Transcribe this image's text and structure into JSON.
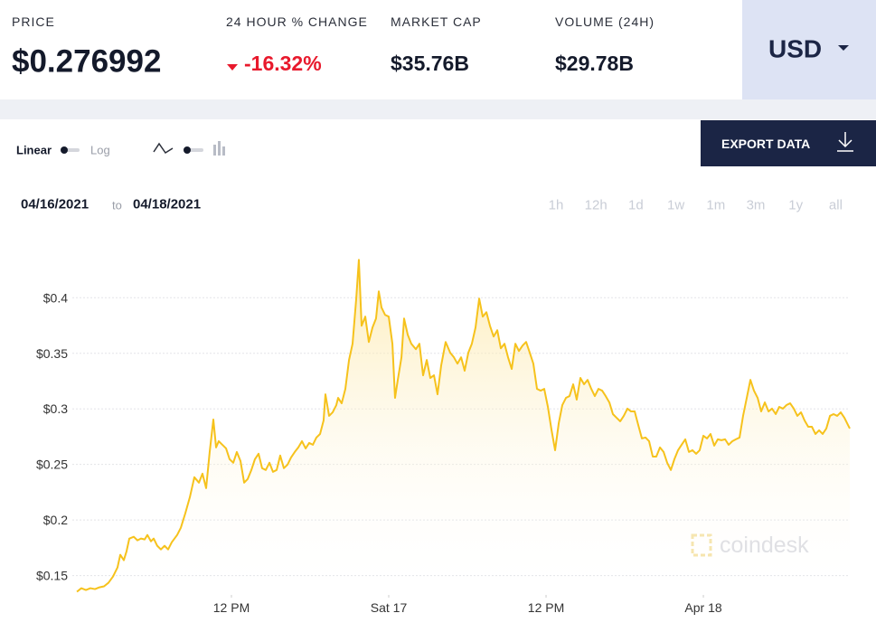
{
  "header": {
    "stats": [
      {
        "label": "PRICE",
        "value": "$0.276992"
      },
      {
        "label": "24 HOUR % CHANGE",
        "value": "-16.32%"
      },
      {
        "label": "MARKET CAP",
        "value": "$35.76B"
      },
      {
        "label": "VOLUME (24H)",
        "value": "$29.78B"
      }
    ],
    "currency": "USD"
  },
  "controls": {
    "scale_options": [
      "Linear",
      "Log"
    ],
    "export": "EXPORT DATA",
    "range_start": "04/16/2021",
    "range_separator": "to",
    "range_end": "04/18/2021",
    "ranges": [
      "1h",
      "12h",
      "1d",
      "1w",
      "1m",
      "3m",
      "1y",
      "all"
    ]
  },
  "chart_data": {
    "type": "area",
    "watermark": "coindesk",
    "color": "#f6c21c",
    "grid": true,
    "x": [
      0.21,
      0.55,
      0.9,
      1.24,
      1.59,
      1.93,
      2.28,
      2.62,
      2.97,
      3.31,
      3.52,
      3.79,
      4.0,
      4.21,
      4.55,
      4.83,
      5.1,
      5.38,
      5.59,
      5.86,
      6.07,
      6.34,
      6.62,
      6.9,
      7.17,
      7.45,
      7.86,
      8.14,
      8.48,
      8.83,
      9.17,
      9.52,
      9.79,
      10.07,
      10.34,
      10.62,
      10.83,
      11.03,
      11.31,
      11.59,
      11.86,
      12.14,
      12.41,
      12.69,
      12.97,
      13.24,
      13.52,
      13.79,
      14.07,
      14.34,
      14.62,
      14.9,
      15.17,
      15.45,
      15.72,
      16.0,
      16.28,
      16.55,
      16.83,
      17.1,
      17.38,
      17.66,
      17.93,
      18.21,
      18.48,
      18.76,
      19.03,
      19.17,
      19.45,
      19.72,
      20.0,
      20.14,
      20.41,
      20.69,
      20.97,
      21.24,
      21.52,
      21.72,
      21.93,
      22.21,
      22.48,
      22.76,
      23.03,
      23.24,
      23.45,
      23.72,
      24.0,
      24.28,
      24.48,
      24.69,
      24.97,
      25.17,
      25.45,
      25.72,
      26.07,
      26.34,
      26.62,
      26.9,
      27.17,
      27.45,
      27.72,
      28.0,
      28.34,
      28.69,
      28.97,
      29.24,
      29.52,
      29.79,
      30.07,
      30.34,
      30.62,
      30.9,
      31.17,
      31.45,
      31.72,
      32.0,
      32.28,
      32.55,
      32.83,
      33.1,
      33.38,
      33.66,
      33.93,
      34.21,
      34.48,
      34.76,
      35.03,
      35.31,
      35.59,
      35.86,
      36.14,
      36.41,
      36.69,
      36.97,
      37.24,
      37.52,
      37.79,
      38.07,
      38.34,
      38.62,
      38.9,
      39.17,
      39.45,
      39.72,
      40.0,
      40.28,
      40.55,
      40.83,
      41.1,
      41.38,
      41.66,
      41.93,
      42.21,
      42.48,
      42.76,
      43.03,
      43.31,
      43.59,
      43.86,
      44.14,
      44.41,
      44.69,
      44.97,
      45.24,
      45.52,
      45.79,
      46.07,
      46.34,
      46.62,
      46.9,
      47.17,
      47.45,
      47.72,
      48.0,
      48.28,
      48.55,
      48.83,
      49.1,
      49.38,
      49.66,
      49.93,
      50.21,
      50.48,
      50.76,
      51.03,
      51.31,
      51.59,
      51.86,
      52.14,
      52.41,
      52.69,
      52.97,
      53.24,
      53.52,
      53.79,
      54.07,
      54.34,
      54.62,
      54.9,
      55.17,
      55.45,
      55.72,
      56.0,
      56.28,
      56.55,
      56.83,
      57.1,
      57.38,
      57.66,
      57.93,
      58.21,
      58.48,
      58.76,
      59.03,
      59.17
    ],
    "values": [
      0.1354,
      0.1386,
      0.137,
      0.1386,
      0.1378,
      0.1394,
      0.1403,
      0.1435,
      0.1492,
      0.1573,
      0.1687,
      0.1638,
      0.1719,
      0.1833,
      0.1849,
      0.1817,
      0.1833,
      0.1825,
      0.1865,
      0.1808,
      0.1833,
      0.1768,
      0.1735,
      0.1768,
      0.1735,
      0.18,
      0.1865,
      0.193,
      0.206,
      0.2206,
      0.2385,
      0.2336,
      0.2417,
      0.2287,
      0.2612,
      0.2904,
      0.2653,
      0.2709,
      0.2677,
      0.2644,
      0.2547,
      0.2515,
      0.2612,
      0.2531,
      0.2336,
      0.2369,
      0.245,
      0.2547,
      0.2596,
      0.2466,
      0.245,
      0.2515,
      0.2433,
      0.245,
      0.258,
      0.2466,
      0.2498,
      0.2563,
      0.2612,
      0.2653,
      0.2709,
      0.2644,
      0.2693,
      0.2677,
      0.2742,
      0.2774,
      0.2896,
      0.3131,
      0.2937,
      0.2969,
      0.3034,
      0.3099,
      0.305,
      0.318,
      0.344,
      0.3586,
      0.3992,
      0.4341,
      0.3748,
      0.383,
      0.3602,
      0.3732,
      0.3813,
      0.4057,
      0.3911,
      0.3846,
      0.383,
      0.3586,
      0.3099,
      0.3261,
      0.3464,
      0.3813,
      0.3667,
      0.3586,
      0.3537,
      0.3586,
      0.3302,
      0.344,
      0.3278,
      0.3302,
      0.3131,
      0.3391,
      0.3602,
      0.3505,
      0.3464,
      0.3407,
      0.3464,
      0.3343,
      0.3505,
      0.3586,
      0.3732,
      0.3992,
      0.383,
      0.387,
      0.3748,
      0.3651,
      0.3708,
      0.3545,
      0.3586,
      0.3464,
      0.3359,
      0.3586,
      0.3521,
      0.357,
      0.3602,
      0.3505,
      0.3407,
      0.318,
      0.3164,
      0.318,
      0.3018,
      0.2815,
      0.2628,
      0.2872,
      0.3034,
      0.3099,
      0.3115,
      0.3221,
      0.3083,
      0.3278,
      0.3221,
      0.3261,
      0.318,
      0.3115,
      0.318,
      0.3164,
      0.3115,
      0.3058,
      0.2953,
      0.292,
      0.2888,
      0.2937,
      0.3002,
      0.2977,
      0.2977,
      0.2856,
      0.2734,
      0.2742,
      0.2709,
      0.2571,
      0.2571,
      0.2653,
      0.2612,
      0.2515,
      0.245,
      0.2547,
      0.2628,
      0.2677,
      0.2726,
      0.2612,
      0.2628,
      0.2596,
      0.2628,
      0.2758,
      0.2734,
      0.2774,
      0.2669,
      0.2726,
      0.2718,
      0.2726,
      0.2677,
      0.2709,
      0.2726,
      0.2742,
      0.2937,
      0.3099,
      0.3261,
      0.3164,
      0.3099,
      0.2977,
      0.3058,
      0.2977,
      0.3002,
      0.2953,
      0.3018,
      0.3002,
      0.3034,
      0.305,
      0.3002,
      0.2937,
      0.2969,
      0.2896,
      0.2839,
      0.2839,
      0.2774,
      0.2807,
      0.2774,
      0.2823,
      0.2937,
      0.2953,
      0.2937,
      0.2969,
      0.292,
      0.2856,
      0.2823
    ],
    "xlim": [
      0,
      59.17
    ],
    "xticks": [
      {
        "value": 12,
        "label": "12 PM"
      },
      {
        "value": 24,
        "label": "Sat 17"
      },
      {
        "value": 36,
        "label": "12 PM"
      },
      {
        "value": 48,
        "label": "Apr 18"
      }
    ],
    "ylim": [
      0.135,
      0.445
    ],
    "yticks": [
      {
        "value": 0.15,
        "label": "$0.15"
      },
      {
        "value": 0.2,
        "label": "$0.2"
      },
      {
        "value": 0.25,
        "label": "$0.25"
      },
      {
        "value": 0.3,
        "label": "$0.3"
      },
      {
        "value": 0.35,
        "label": "$0.35"
      },
      {
        "value": 0.4,
        "label": "$0.4"
      }
    ]
  }
}
